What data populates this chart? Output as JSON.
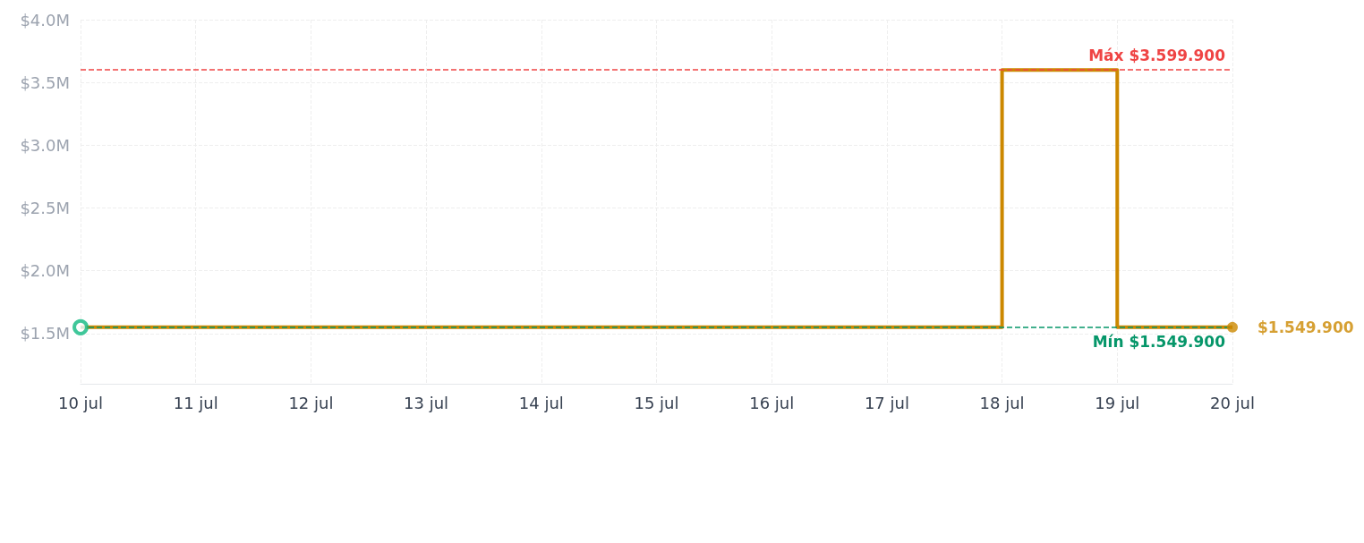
{
  "chart_data": {
    "type": "step",
    "x": [
      "--07-10",
      "--07-11",
      "--07-12",
      "--07-13",
      "--07-14",
      "--07-15",
      "--07-16",
      "--07-17",
      "--07-18",
      "--07-19",
      "--07-20"
    ],
    "series": [
      {
        "color": "#cc8800",
        "values": [
          1549900,
          1549900,
          1549900,
          1549900,
          1549900,
          1549900,
          1549900,
          1549900,
          3599900,
          1549900,
          1549900
        ],
        "marker": "none",
        "line_style": "solid"
      },
      {
        "type": "scatter",
        "color": "#10b981",
        "x": [
          "--07-10"
        ],
        "values": [
          1549900
        ],
        "marker": "circle"
      },
      {
        "type": "scatter",
        "color": "#cc8800",
        "x": [
          "--07-20"
        ],
        "values": [
          1549900
        ],
        "marker": "circle",
        "value_labels": [
          "$1.549.900"
        ]
      }
    ],
    "xlim": [
      "--07-10",
      "--07-20"
    ],
    "xticks": [
      {
        "value": "--07-10",
        "label": "10 jul"
      },
      {
        "value": "--07-11",
        "label": "11 jul"
      },
      {
        "value": "--07-12",
        "label": "12 jul"
      },
      {
        "value": "--07-13",
        "label": "13 jul"
      },
      {
        "value": "--07-14",
        "label": "14 jul"
      },
      {
        "value": "--07-15",
        "label": "15 jul"
      },
      {
        "value": "--07-16",
        "label": "16 jul"
      },
      {
        "value": "--07-17",
        "label": "17 jul"
      },
      {
        "value": "--07-18",
        "label": "18 jul"
      },
      {
        "value": "--07-19",
        "label": "19 jul"
      },
      {
        "value": "--07-20",
        "label": "20 jul"
      }
    ],
    "ylim": [
      1100000,
      4000000
    ],
    "yticks": [
      {
        "value": 1500000,
        "label": "$1.5M"
      },
      {
        "value": 2000000,
        "label": "$2.0M"
      },
      {
        "value": 2500000,
        "label": "$2.5M"
      },
      {
        "value": 3000000,
        "label": "$3.0M"
      },
      {
        "value": 3500000,
        "label": "$3.5M"
      },
      {
        "value": 4000000,
        "label": "$4.0M"
      }
    ],
    "ref_lines": [
      {
        "axis": "y",
        "value": 3599900,
        "label": "Máx $3.599.900",
        "color": "#ef4444",
        "line_style": "dashed"
      },
      {
        "axis": "y",
        "value": 1549900,
        "label": "Mín $1.549.900",
        "color": "#059669",
        "line_style": "dashed"
      }
    ],
    "grid": true
  }
}
